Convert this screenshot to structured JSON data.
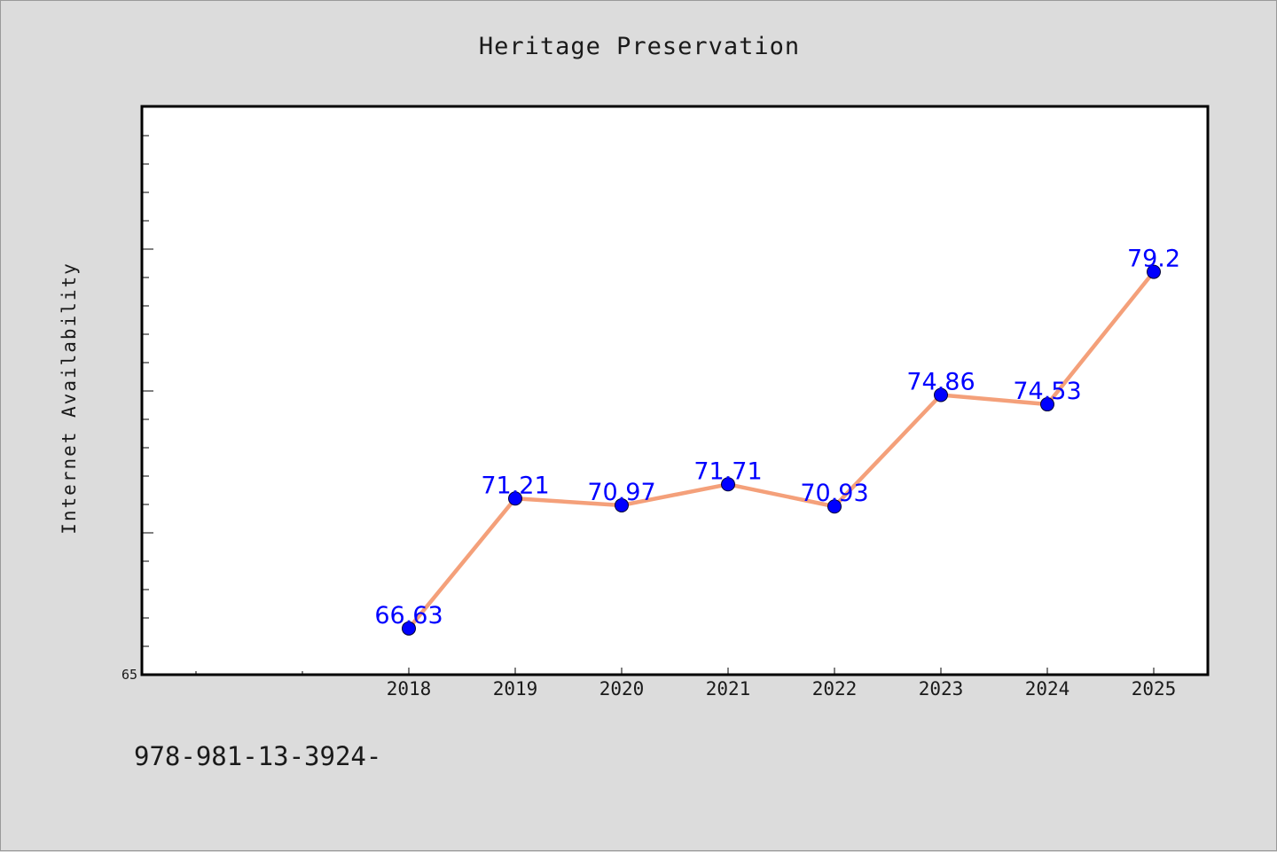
{
  "chart_data": {
    "type": "line",
    "title": "Heritage Preservation",
    "xlabel": "",
    "ylabel": "Internet Availability",
    "categories": [
      "2018",
      "2019",
      "2020",
      "2021",
      "2022",
      "2023",
      "2024",
      "2025"
    ],
    "series": [
      {
        "values": [
          66.63,
          71.21,
          70.97,
          71.71,
          70.93,
          74.86,
          74.53,
          79.2
        ],
        "labels": [
          "66.63",
          "71.21",
          "70.97",
          "71.71",
          "70.93",
          "74.86",
          "74.53",
          "79.2"
        ]
      }
    ],
    "ylim": [
      65,
      85
    ],
    "yticks": [
      {
        "value": 65,
        "label": "65"
      }
    ],
    "grid": false,
    "line_color": "#f4a07a",
    "marker_color": "#0000ff",
    "label_color": "#0000ff",
    "plot_background": "#ffffff",
    "page_background": "#dcdcdc"
  },
  "footer": {
    "text": "978-981-13-3924-"
  }
}
